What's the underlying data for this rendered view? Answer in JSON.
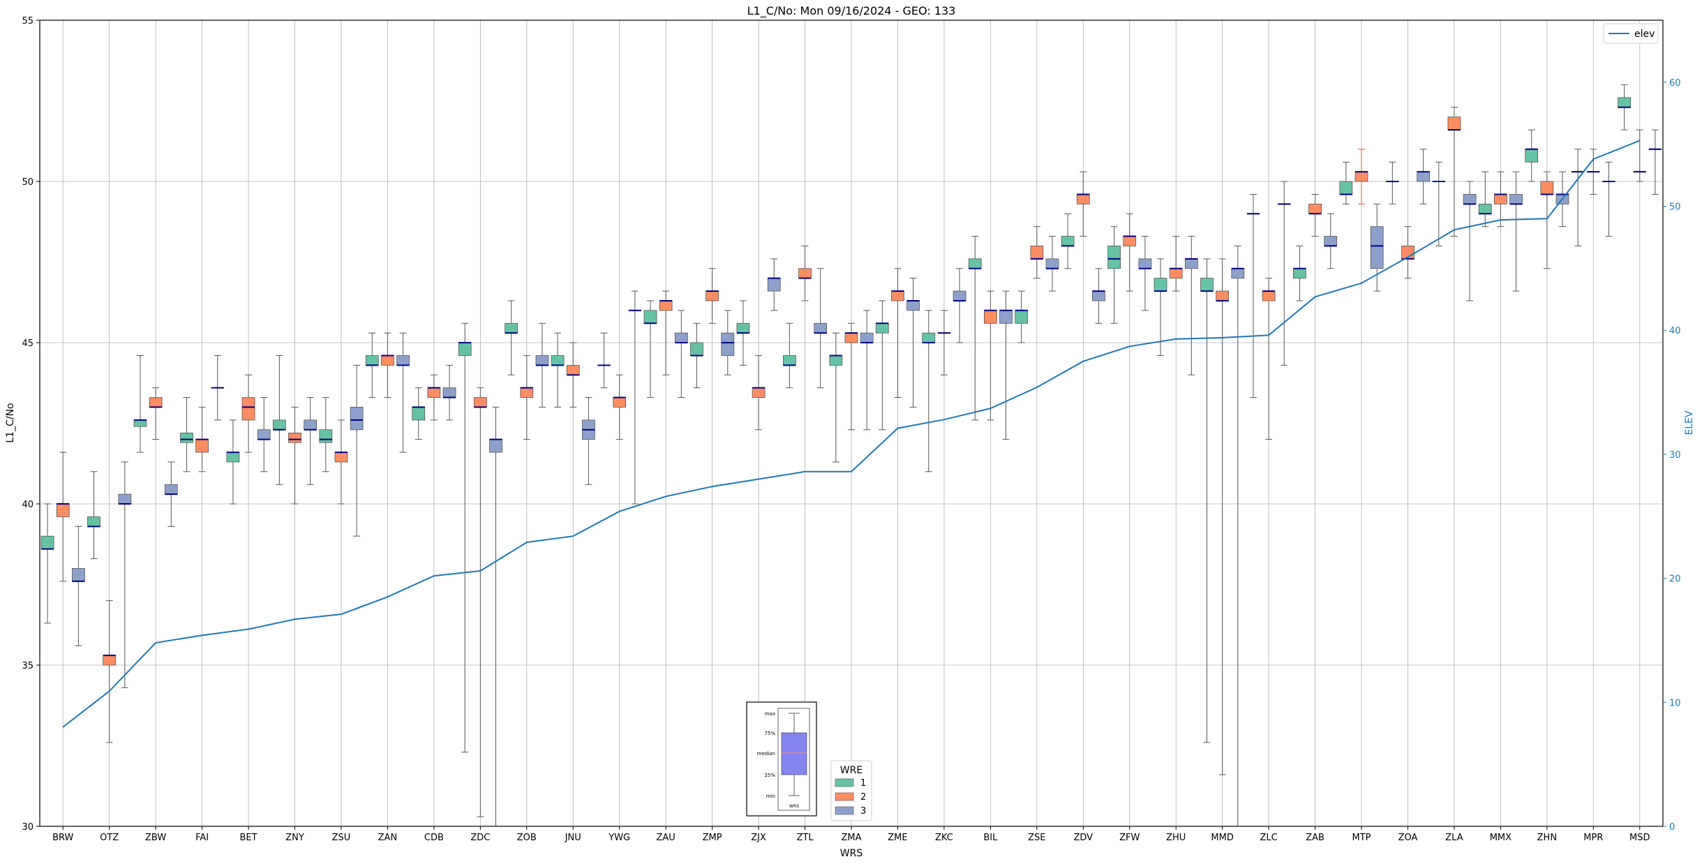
{
  "chart_data": {
    "type": "box",
    "title": "L1_C/No: Mon 09/16/2024 - GEO: 133",
    "xlabel": "WRS",
    "ylabel": "L1_C/No",
    "y2label": "ELEV",
    "ylim": [
      30,
      55
    ],
    "y2lim": [
      0,
      65
    ],
    "yticks": [
      30,
      35,
      40,
      45,
      50,
      55
    ],
    "y2ticks": [
      0,
      10,
      20,
      30,
      40,
      50,
      60
    ],
    "grid": true,
    "categories": [
      "BRW",
      "OTZ",
      "ZBW",
      "FAI",
      "BET",
      "ZNY",
      "ZSU",
      "ZAN",
      "CDB",
      "ZDC",
      "ZOB",
      "JNU",
      "YWG",
      "ZAU",
      "ZMP",
      "ZJX",
      "ZTL",
      "ZMA",
      "ZME",
      "ZKC",
      "BIL",
      "ZSE",
      "ZDV",
      "ZFW",
      "ZHU",
      "MMD",
      "ZLC",
      "ZAB",
      "MTP",
      "ZOA",
      "ZLA",
      "MMX",
      "ZHN",
      "MPR",
      "MSD"
    ],
    "series": [
      {
        "name": "1",
        "color": "#66c2a5",
        "boxes": [
          [
            36.3,
            38.6,
            38.6,
            39.0,
            40.0
          ],
          [
            38.3,
            39.3,
            39.3,
            39.6,
            41.0
          ],
          [
            41.6,
            42.4,
            42.6,
            42.6,
            44.6
          ],
          [
            41.0,
            41.9,
            42.0,
            42.2,
            43.3
          ],
          [
            40.0,
            41.3,
            41.6,
            41.6,
            42.6
          ],
          [
            40.6,
            42.3,
            42.3,
            42.6,
            44.6
          ],
          [
            41.0,
            41.9,
            42.0,
            42.3,
            43.3
          ],
          [
            43.3,
            44.3,
            44.3,
            44.6,
            45.3
          ],
          [
            42.0,
            42.6,
            43.0,
            43.0,
            43.6
          ],
          [
            32.3,
            44.6,
            45.0,
            45.0,
            45.6
          ],
          [
            44.0,
            45.3,
            45.3,
            45.6,
            46.3
          ],
          [
            43.0,
            44.3,
            44.3,
            44.6,
            45.3
          ],
          [
            43.6,
            44.3,
            44.3,
            44.3,
            45.3
          ],
          [
            43.3,
            45.6,
            45.6,
            46.0,
            46.3
          ],
          [
            43.6,
            44.6,
            44.6,
            45.0,
            45.6
          ],
          [
            44.3,
            45.3,
            45.3,
            45.6,
            46.3
          ],
          [
            43.6,
            44.3,
            44.3,
            44.6,
            45.6
          ],
          [
            41.3,
            44.3,
            44.6,
            44.6,
            45.3
          ],
          [
            42.3,
            45.3,
            45.6,
            45.6,
            46.3
          ],
          [
            41.0,
            45.0,
            45.0,
            45.3,
            46.0
          ],
          [
            42.6,
            47.3,
            47.3,
            47.6,
            48.3
          ],
          [
            45.0,
            45.6,
            46.0,
            46.0,
            46.6
          ],
          [
            47.3,
            48.0,
            48.0,
            48.3,
            49.0
          ],
          [
            45.6,
            47.3,
            47.6,
            48.0,
            48.6
          ],
          [
            44.6,
            46.6,
            46.6,
            47.0,
            47.6
          ],
          [
            32.6,
            46.6,
            46.6,
            47.0,
            47.6
          ],
          [
            43.3,
            49.0,
            49.0,
            49.0,
            49.6
          ],
          [
            46.3,
            47.0,
            47.3,
            47.3,
            48.0
          ],
          [
            49.3,
            49.6,
            49.6,
            50.0,
            50.6
          ],
          [
            49.3,
            50.0,
            50.0,
            50.0,
            50.6
          ],
          [
            48.0,
            50.0,
            50.0,
            50.0,
            50.6
          ],
          [
            48.6,
            49.0,
            49.0,
            49.3,
            50.3
          ],
          [
            50.0,
            50.6,
            51.0,
            51.0,
            51.6
          ],
          [
            48.0,
            50.3,
            50.3,
            50.3,
            51.0
          ],
          [
            51.6,
            52.3,
            52.3,
            52.6,
            53.0
          ]
        ]
      },
      {
        "name": "2",
        "color": "#fc8d62",
        "boxes": [
          [
            37.6,
            39.6,
            40.0,
            40.0,
            41.6
          ],
          [
            32.6,
            35.0,
            35.3,
            35.3,
            37.0
          ],
          [
            42.0,
            43.0,
            43.0,
            43.3,
            43.6
          ],
          [
            41.0,
            41.6,
            42.0,
            42.0,
            43.0
          ],
          [
            41.6,
            42.6,
            43.0,
            43.3,
            44.0
          ],
          [
            40.0,
            41.9,
            42.0,
            42.2,
            43.0
          ],
          [
            40.0,
            41.3,
            41.6,
            41.6,
            42.6
          ],
          [
            43.3,
            44.3,
            44.6,
            44.6,
            45.3
          ],
          [
            42.6,
            43.3,
            43.6,
            43.6,
            44.0
          ],
          [
            30.3,
            43.0,
            43.0,
            43.3,
            43.6
          ],
          [
            42.0,
            43.3,
            43.6,
            43.6,
            44.6
          ],
          [
            43.0,
            44.0,
            44.0,
            44.3,
            45.0
          ],
          [
            42.0,
            43.0,
            43.3,
            43.3,
            44.0
          ],
          [
            44.0,
            46.0,
            46.3,
            46.3,
            46.6
          ],
          [
            45.6,
            46.3,
            46.6,
            46.6,
            47.3
          ],
          [
            42.3,
            43.3,
            43.6,
            43.6,
            44.6
          ],
          [
            46.3,
            47.0,
            47.0,
            47.3,
            48.0
          ],
          [
            42.3,
            45.0,
            45.3,
            45.3,
            45.6
          ],
          [
            43.3,
            46.3,
            46.6,
            46.6,
            47.3
          ],
          [
            44.0,
            45.3,
            45.3,
            45.3,
            46.0
          ],
          [
            42.6,
            45.6,
            46.0,
            46.0,
            46.6
          ],
          [
            47.0,
            47.6,
            47.6,
            48.0,
            48.6
          ],
          [
            48.3,
            49.3,
            49.6,
            49.6,
            50.3
          ],
          [
            46.6,
            48.0,
            48.3,
            48.3,
            49.0
          ],
          [
            46.6,
            47.0,
            47.3,
            47.3,
            48.3
          ],
          [
            31.6,
            46.3,
            46.3,
            46.6,
            47.6
          ],
          [
            42.0,
            46.3,
            46.6,
            46.6,
            47.0
          ],
          [
            48.3,
            49.0,
            49.0,
            49.3,
            49.6
          ],
          [
            49.3,
            50.0,
            50.3,
            50.3,
            51.0
          ],
          [
            47.0,
            47.6,
            47.6,
            48.0,
            48.6
          ],
          [
            48.3,
            51.6,
            51.6,
            52.0,
            52.3
          ],
          [
            48.6,
            49.3,
            49.6,
            49.6,
            50.3
          ],
          [
            47.3,
            49.6,
            49.6,
            50.0,
            50.3
          ],
          [
            49.6,
            50.3,
            50.3,
            50.3,
            51.0
          ],
          [
            50.0,
            50.3,
            50.3,
            50.3,
            51.6
          ]
        ]
      },
      {
        "name": "3",
        "color": "#8da0cb",
        "boxes": [
          [
            35.6,
            37.6,
            37.6,
            38.0,
            39.3
          ],
          [
            34.3,
            40.0,
            40.0,
            40.3,
            41.3
          ],
          [
            39.3,
            40.3,
            40.3,
            40.6,
            41.3
          ],
          [
            42.6,
            43.6,
            43.6,
            43.6,
            44.6
          ],
          [
            41.0,
            42.0,
            42.0,
            42.3,
            43.3
          ],
          [
            40.6,
            42.3,
            42.3,
            42.6,
            43.3
          ],
          [
            39.0,
            42.3,
            42.6,
            43.0,
            44.3
          ],
          [
            41.6,
            44.3,
            44.3,
            44.6,
            45.3
          ],
          [
            42.6,
            43.3,
            43.3,
            43.6,
            44.3
          ],
          [
            30.0,
            41.6,
            42.0,
            42.0,
            43.0
          ],
          [
            43.0,
            44.3,
            44.3,
            44.6,
            45.6
          ],
          [
            40.6,
            42.0,
            42.3,
            42.6,
            43.3
          ],
          [
            40.0,
            46.0,
            46.0,
            46.0,
            46.6
          ],
          [
            43.3,
            45.0,
            45.0,
            45.3,
            46.0
          ],
          [
            44.0,
            44.6,
            45.0,
            45.3,
            46.0
          ],
          [
            46.0,
            46.6,
            47.0,
            47.0,
            47.6
          ],
          [
            43.6,
            45.3,
            45.3,
            45.6,
            47.3
          ],
          [
            42.3,
            45.0,
            45.0,
            45.3,
            46.0
          ],
          [
            43.0,
            46.0,
            46.3,
            46.3,
            47.0
          ],
          [
            45.0,
            46.3,
            46.3,
            46.6,
            47.3
          ],
          [
            42.0,
            45.6,
            46.0,
            46.0,
            46.6
          ],
          [
            46.6,
            47.3,
            47.3,
            47.6,
            48.3
          ],
          [
            45.6,
            46.3,
            46.6,
            46.6,
            47.3
          ],
          [
            46.0,
            47.3,
            47.3,
            47.6,
            48.3
          ],
          [
            44.0,
            47.3,
            47.6,
            47.6,
            48.3
          ],
          [
            30.0,
            47.0,
            47.3,
            47.3,
            48.0
          ],
          [
            44.3,
            49.3,
            49.3,
            49.3,
            50.0
          ],
          [
            47.3,
            48.0,
            48.0,
            48.3,
            49.0
          ],
          [
            46.6,
            47.3,
            48.0,
            48.6,
            49.3
          ],
          [
            49.3,
            50.0,
            50.3,
            50.3,
            51.0
          ],
          [
            46.3,
            49.3,
            49.3,
            49.6,
            50.0
          ],
          [
            46.6,
            49.3,
            49.3,
            49.6,
            50.3
          ],
          [
            48.6,
            49.3,
            49.6,
            49.6,
            50.3
          ],
          [
            48.3,
            50.0,
            50.0,
            50.0,
            50.6
          ],
          [
            49.6,
            51.0,
            51.0,
            51.0,
            51.6
          ]
        ]
      }
    ],
    "elev": {
      "name": "elev",
      "color": "#1f77b4",
      "values": [
        8.0,
        10.9,
        14.8,
        15.4,
        15.9,
        16.7,
        17.1,
        18.5,
        20.2,
        20.6,
        22.9,
        23.4,
        25.4,
        26.6,
        27.4,
        28.0,
        28.6,
        28.6,
        32.1,
        32.8,
        33.7,
        35.4,
        37.5,
        38.7,
        39.3,
        39.4,
        39.6,
        42.7,
        43.8,
        45.9,
        48.1,
        48.9,
        49.0,
        53.8,
        55.3
      ]
    },
    "legend": {
      "title": "WRE",
      "position": "lower-center",
      "entries": [
        "1",
        "2",
        "3"
      ]
    },
    "legend2": {
      "position": "upper-right",
      "entries": [
        "elev"
      ]
    },
    "inset": {
      "labels": [
        "max",
        "75%",
        "median",
        "25%",
        "min"
      ],
      "xlabel": "WRS"
    }
  }
}
